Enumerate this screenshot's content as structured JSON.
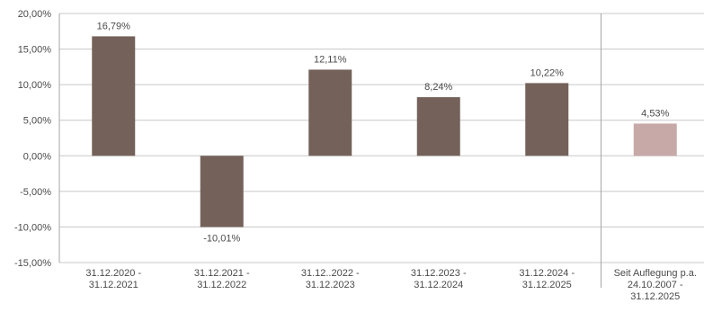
{
  "chart_data": {
    "type": "bar",
    "categories": [
      [
        "31.12.2020 -",
        "31.12.2021"
      ],
      [
        "31.12.2021 -",
        "31.12.2022"
      ],
      [
        "31.12..2022 -",
        "31.12.2023"
      ],
      [
        "31.12.2023 -",
        "31.12.2024"
      ],
      [
        "31.12.2024 -",
        "31.12.2025"
      ],
      [
        "Seit Auflegung p.a.",
        "24.10.2007 -",
        "31.12.2025"
      ]
    ],
    "values": [
      16.79,
      -10.01,
      12.11,
      8.24,
      10.22,
      4.53
    ],
    "value_labels": [
      "16,79%",
      "-10,01%",
      "12,11%",
      "8,24%",
      "10,22%",
      "4,53%"
    ],
    "bar_colors": [
      "#74625a",
      "#74625a",
      "#74625a",
      "#74625a",
      "#74625a",
      "#c7a9a7"
    ],
    "ylim": [
      -15,
      20
    ],
    "yticks": [
      20,
      15,
      10,
      5,
      0,
      -5,
      -10,
      -15
    ],
    "ytick_labels": [
      "20,00%",
      "15,00%",
      "10,00%",
      "5,00%",
      "0,00%",
      "-5,00%",
      "-10,00%",
      "-15,00%"
    ],
    "grid": true,
    "separator_before_last": true,
    "colors": {
      "grid": "#c8c8c8",
      "axis": "#a6a6a6",
      "text": "#4a4a4a"
    }
  }
}
